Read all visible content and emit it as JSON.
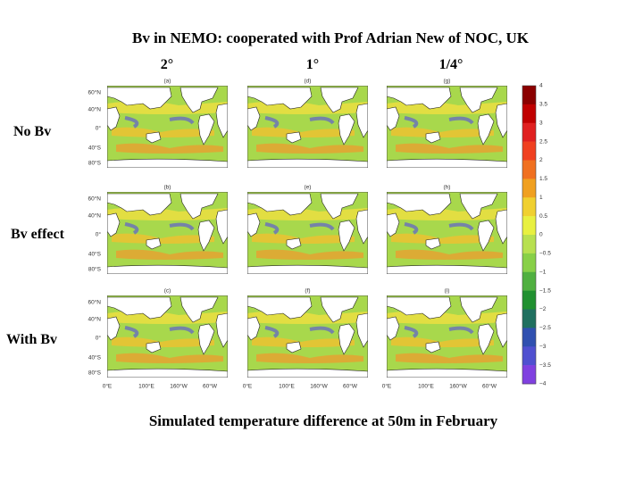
{
  "title": "Bv in NEMO: cooperated with Prof Adrian New of NOC, UK",
  "columns": [
    "2°",
    "1°",
    "1/4°"
  ],
  "rows": [
    "No Bv",
    "Bv effect",
    "With Bv"
  ],
  "panels": [
    [
      "(a)",
      "(d)",
      "(g)"
    ],
    [
      "(b)",
      "(e)",
      "(h)"
    ],
    [
      "(c)",
      "(f)",
      "(i)"
    ]
  ],
  "y_axis_labels": [
    "60°N",
    "40°N",
    "0°",
    "40°S",
    "80°S"
  ],
  "x_axis_labels": [
    "0°E",
    "100°E",
    "160°W",
    "60°W"
  ],
  "colorbar_labels": [
    "4",
    "3.5",
    "3",
    "2.5",
    "2",
    "1.5",
    "1",
    "0.5",
    "0",
    "−0.5",
    "−1",
    "−1.5",
    "−2",
    "−2.5",
    "−3",
    "−3.5",
    "−4"
  ],
  "caption": "Simulated temperature difference at 50m in February"
}
